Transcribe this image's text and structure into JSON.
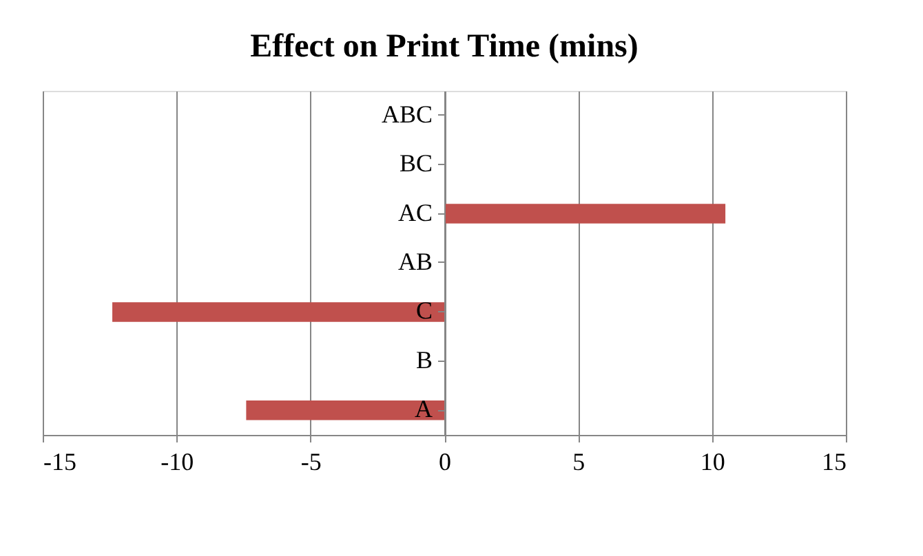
{
  "chart_data": {
    "type": "bar",
    "orientation": "horizontal",
    "title": "Effect on Print Time (mins)",
    "categories": [
      "ABC",
      "BC",
      "AC",
      "AB",
      "C",
      "B",
      "A"
    ],
    "values": [
      0,
      0,
      10.5,
      0,
      -12.4,
      0,
      -7.4
    ],
    "color": "#c0504d",
    "xlim": [
      -15,
      15
    ],
    "xticks": [
      -15,
      -10,
      -5,
      0,
      5,
      10,
      15
    ],
    "grid": "x"
  }
}
